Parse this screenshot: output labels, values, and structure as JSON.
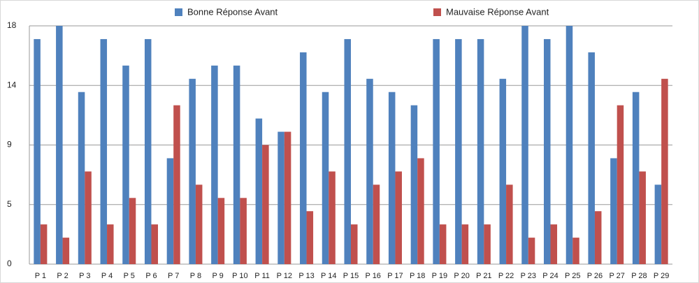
{
  "chart_data": {
    "type": "bar",
    "categories": [
      "P 1",
      "P 2",
      "P 3",
      "P 4",
      "P 5",
      "P 6",
      "P 7",
      "P 8",
      "P 9",
      "P 10",
      "P 11",
      "P 12",
      "P 13",
      "P 14",
      "P 15",
      "P 16",
      "P 17",
      "P 18",
      "P 19",
      "P 20",
      "P 21",
      "P 22",
      "P 23",
      "P 24",
      "P 25",
      "P 26",
      "P 27",
      "P 28",
      "P 29"
    ],
    "series": [
      {
        "name": "Bonne Réponse Avant",
        "color": "#4f81bd",
        "values": [
          17,
          18,
          13,
          17,
          15,
          17,
          8,
          14,
          15,
          15,
          11,
          10,
          16,
          13,
          17,
          14,
          13,
          12,
          17,
          17,
          17,
          14,
          18,
          17,
          18,
          16,
          8,
          13,
          6
        ]
      },
      {
        "name": "Mauvaise Réponse Avant",
        "color": "#c0504d",
        "values": [
          3,
          2,
          7,
          3,
          5,
          3,
          12,
          6,
          5,
          5,
          9,
          10,
          4,
          7,
          3,
          6,
          7,
          8,
          3,
          3,
          3,
          6,
          2,
          3,
          2,
          4,
          12,
          7,
          14
        ]
      }
    ],
    "ylim": [
      0,
      18
    ],
    "yticks": [
      0,
      {
        "value": 4.5,
        "label": "5"
      },
      9,
      {
        "value": 13.5,
        "label": "14"
      },
      18
    ],
    "grid": true,
    "legend": "top"
  }
}
